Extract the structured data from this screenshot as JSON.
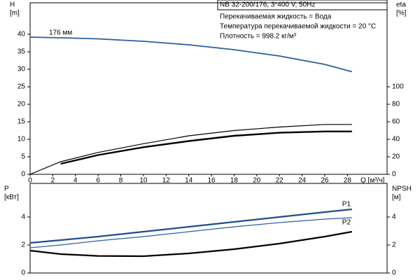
{
  "chart_data": [
    {
      "type": "line",
      "title": "NB 32-200/176, 3*400 V, 50Hz",
      "notes": [
        "Перекачиваемая жидкость = Вода",
        "Температура перекачиваемой жидкости = 20 °C",
        "Плотность = 998.2 кг/м³"
      ],
      "annotation": "176 мм",
      "ylabel": [
        "H",
        "[m]"
      ],
      "y2label": [
        "eta",
        "[%]"
      ],
      "xlabel": "Q [м³/ч]",
      "x": [
        0,
        2.7,
        6,
        10,
        14,
        18,
        22,
        26,
        28.4
      ],
      "xlim": [
        0,
        31.5
      ],
      "xticks": [
        0,
        2,
        4,
        6,
        8,
        10,
        12,
        14,
        16,
        18,
        20,
        22,
        24,
        26,
        28
      ],
      "ylim": [
        0,
        49
      ],
      "yticks": [
        0,
        5,
        10,
        15,
        20,
        25,
        30,
        35,
        40
      ],
      "y2lim": [
        0,
        196
      ],
      "y2ticks": [
        0,
        20,
        40,
        60,
        80,
        100
      ],
      "grid": false,
      "series": [
        {
          "color": "#2a5f9e",
          "width": 1.8,
          "values": [
            39.2,
            39.0,
            38.7,
            38.0,
            37.0,
            35.6,
            33.8,
            31.4,
            29.3
          ]
        },
        {
          "color": "#000000",
          "width": 1.2,
          "axis": "y2",
          "values": [
            0,
            14.4,
            25,
            35,
            44,
            50,
            54,
            57,
            57
          ]
        },
        {
          "color": "#000000",
          "width": 2.4,
          "axis": "y2",
          "values": [
            null,
            12,
            22,
            31,
            38,
            44,
            47.5,
            49,
            49
          ]
        }
      ]
    },
    {
      "type": "line",
      "ylabel": [
        "P",
        "[кВт]"
      ],
      "y2label": [
        "NPSH",
        "[м]"
      ],
      "x": [
        0,
        2.7,
        6,
        10,
        14,
        18,
        22,
        26,
        28.4
      ],
      "xlim": [
        0,
        31.5
      ],
      "ylim": [
        0,
        6.4
      ],
      "yticks": [
        0,
        2,
        4
      ],
      "y2lim": [
        0,
        6.4
      ],
      "y2ticks": [
        0,
        2,
        4
      ],
      "grid": false,
      "series": [
        {
          "name": "P1",
          "color": "#1f4e8c",
          "width": 2.2,
          "values": [
            2.15,
            2.35,
            2.6,
            2.95,
            3.3,
            3.65,
            4.0,
            4.35,
            4.55
          ]
        },
        {
          "name": "P2",
          "color": "#2a5f9e",
          "width": 1.2,
          "values": [
            1.8,
            2.0,
            2.3,
            2.6,
            2.95,
            3.3,
            3.6,
            3.85,
            3.95
          ]
        },
        {
          "color": "#000000",
          "width": 2.2,
          "axis": "y2",
          "values": [
            1.6,
            1.35,
            1.22,
            1.2,
            1.4,
            1.7,
            2.1,
            2.6,
            2.95
          ]
        }
      ]
    }
  ]
}
